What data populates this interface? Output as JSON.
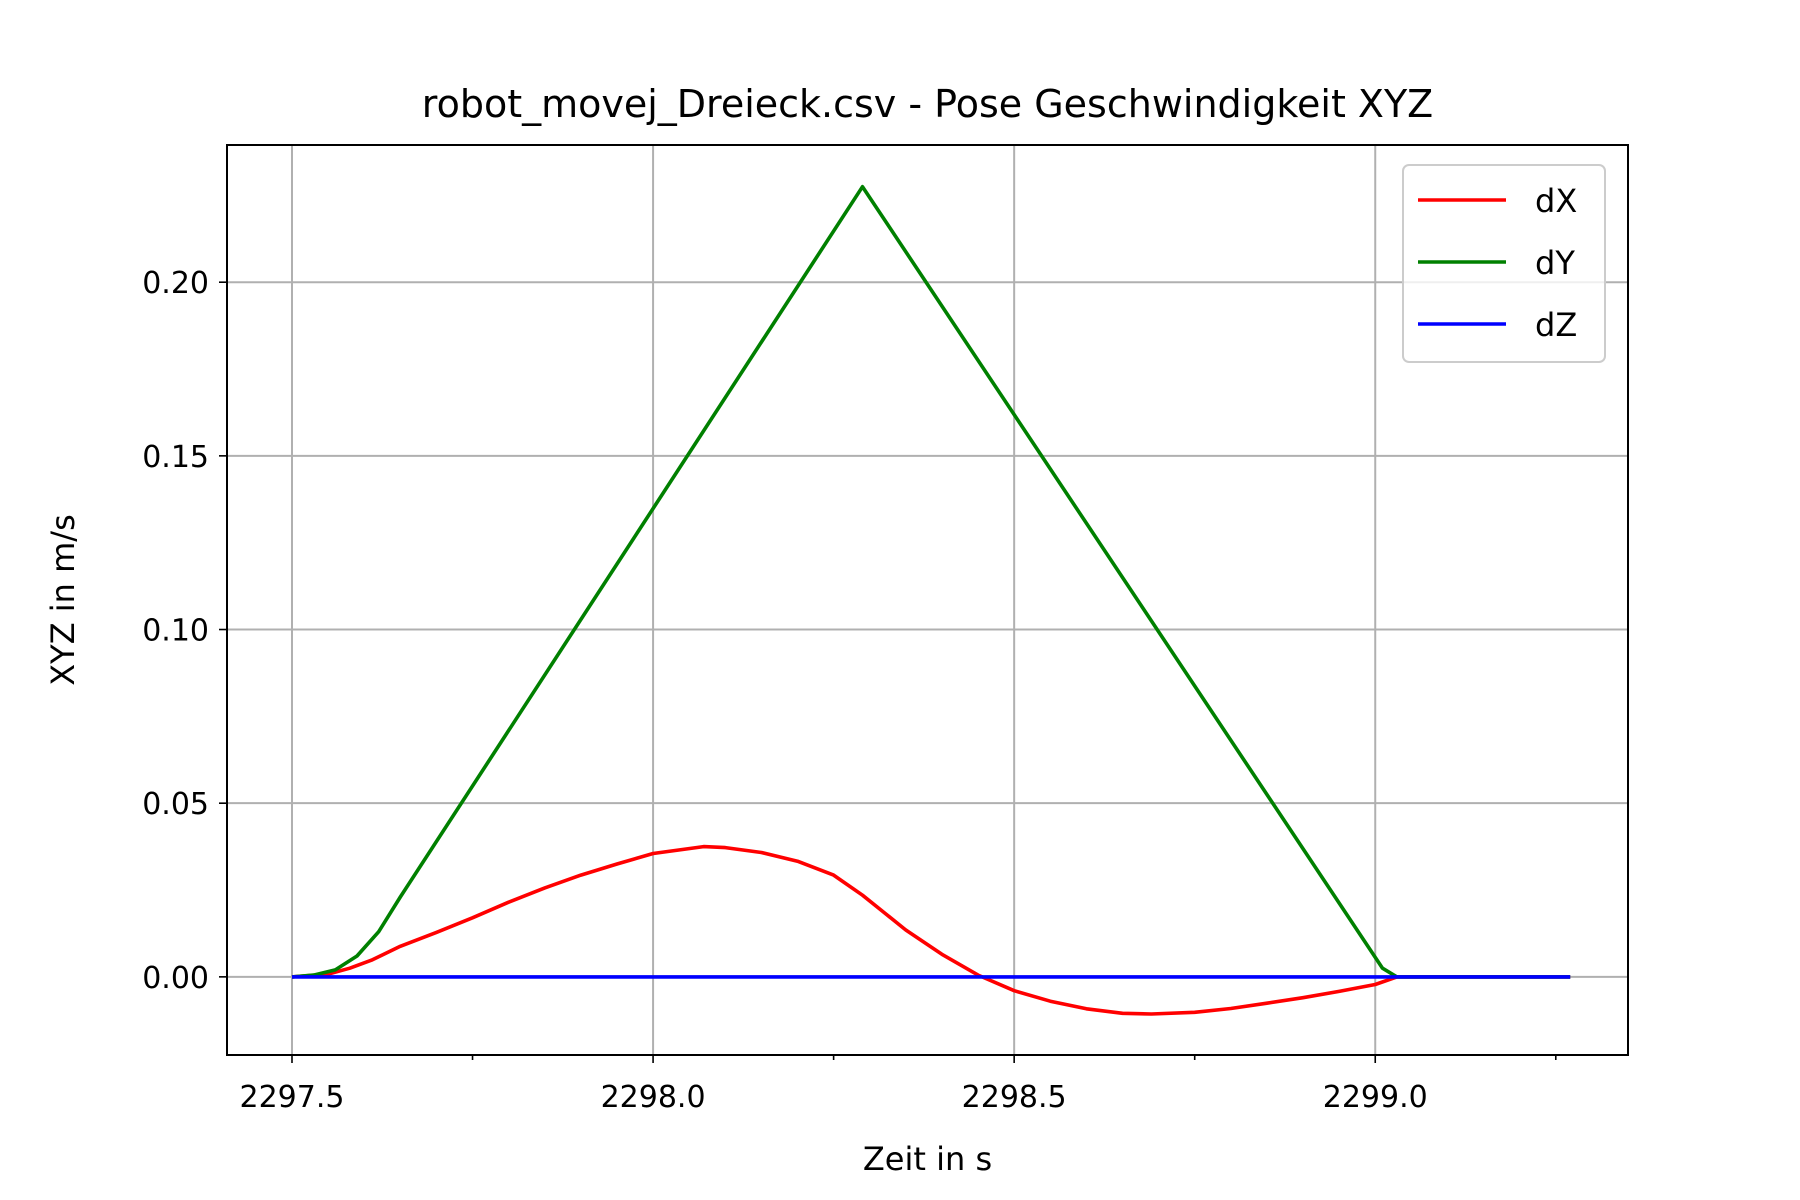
{
  "chart_data": {
    "type": "line",
    "title": "robot_movej_Dreieck.csv - Pose Geschwindigkeit XYZ",
    "xlabel": "Zeit in s",
    "ylabel": "XYZ in m/s",
    "xlim": [
      2297.41,
      2299.35
    ],
    "ylim": [
      -0.0225,
      0.2395
    ],
    "xticks": [
      2297.5,
      2298.0,
      2298.5,
      2299.0
    ],
    "xtick_labels": [
      "2297.5",
      "2298.0",
      "2298.5",
      "2299.0"
    ],
    "xminor_ticks": [
      2297.75,
      2298.25,
      2298.75,
      2299.25
    ],
    "yticks": [
      0.0,
      0.05,
      0.1,
      0.15,
      0.2
    ],
    "ytick_labels": [
      "0.00",
      "0.05",
      "0.10",
      "0.15",
      "0.20"
    ],
    "grid": true,
    "legend_position": "top-right",
    "series": [
      {
        "name": "dX",
        "color": "#ff0000",
        "x": [
          2297.5,
          2297.55,
          2297.58,
          2297.61,
          2297.65,
          2297.7,
          2297.75,
          2297.8,
          2297.85,
          2297.9,
          2297.95,
          2298.0,
          2298.07,
          2298.1,
          2298.15,
          2298.2,
          2298.25,
          2298.29,
          2298.32,
          2298.35,
          2298.4,
          2298.45,
          2298.5,
          2298.55,
          2298.6,
          2298.65,
          2298.69,
          2298.75,
          2298.8,
          2298.85,
          2298.9,
          2298.95,
          2299.0,
          2299.03,
          2299.1,
          2299.2,
          2299.27
        ],
        "values": [
          0.0,
          0.0008,
          0.0025,
          0.0048,
          0.0088,
          0.0128,
          0.017,
          0.0215,
          0.0256,
          0.0293,
          0.0325,
          0.0355,
          0.0375,
          0.0372,
          0.0358,
          0.0333,
          0.0293,
          0.0235,
          0.0185,
          0.0135,
          0.0065,
          0.0005,
          -0.004,
          -0.007,
          -0.0092,
          -0.0105,
          -0.0107,
          -0.0102,
          -0.0091,
          -0.0076,
          -0.006,
          -0.0042,
          -0.0022,
          0.0,
          0.0,
          0.0,
          0.0
        ]
      },
      {
        "name": "dY",
        "color": "#008000",
        "x": [
          2297.5,
          2297.53,
          2297.56,
          2297.59,
          2297.62,
          2297.65,
          2298.29,
          2299.01,
          2299.03,
          2299.1,
          2299.2,
          2299.27
        ],
        "values": [
          0.0,
          0.0005,
          0.002,
          0.006,
          0.013,
          0.023,
          0.2275,
          0.0025,
          0.0,
          0.0,
          0.0,
          0.0
        ]
      },
      {
        "name": "dZ",
        "color": "#0000ff",
        "x": [
          2297.5,
          2299.27
        ],
        "values": [
          0.0,
          0.0
        ]
      }
    ]
  }
}
